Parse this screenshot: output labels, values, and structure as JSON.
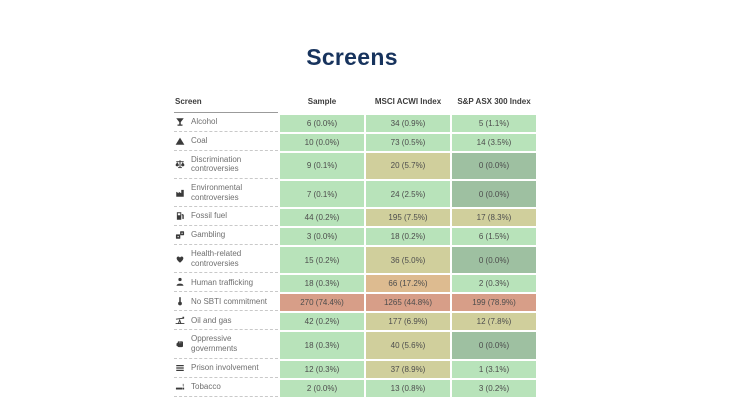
{
  "page": {
    "title_color": "#17335d",
    "background": "#ffffff"
  },
  "chart_data": {
    "type": "table",
    "title": "Screens",
    "columns": [
      "Screen",
      "Sample",
      "MSCI ACWI Index",
      "S&P ASX 300 Index"
    ],
    "palette": {
      "green": "#b8e3ba",
      "sage": "#9ec0a1",
      "tan": "#d0cf9c",
      "orange": "#ddbb90",
      "salmon": "#d79e88"
    },
    "rows": [
      {
        "label": "Alcohol",
        "icon": "cocktail-glass-icon",
        "cells": [
          {
            "value": "6 (0.0%)",
            "color": "green"
          },
          {
            "value": "34 (0.9%)",
            "color": "green"
          },
          {
            "value": "5 (1.1%)",
            "color": "green"
          }
        ]
      },
      {
        "label": "Coal",
        "icon": "mountain-icon",
        "cells": [
          {
            "value": "10 (0.0%)",
            "color": "green"
          },
          {
            "value": "73 (0.5%)",
            "color": "green"
          },
          {
            "value": "14 (3.5%)",
            "color": "green"
          }
        ]
      },
      {
        "label": "Discrimination controversies",
        "icon": "scales-icon",
        "cells": [
          {
            "value": "9 (0.1%)",
            "color": "green"
          },
          {
            "value": "20 (5.7%)",
            "color": "tan"
          },
          {
            "value": "0 (0.0%)",
            "color": "sage"
          }
        ]
      },
      {
        "label": "Environmental controversies",
        "icon": "factory-icon",
        "cells": [
          {
            "value": "7 (0.1%)",
            "color": "green"
          },
          {
            "value": "24 (2.5%)",
            "color": "green"
          },
          {
            "value": "0 (0.0%)",
            "color": "sage"
          }
        ]
      },
      {
        "label": "Fossil fuel",
        "icon": "gas-pump-icon",
        "cells": [
          {
            "value": "44 (0.2%)",
            "color": "green"
          },
          {
            "value": "195 (7.5%)",
            "color": "tan"
          },
          {
            "value": "17 (8.3%)",
            "color": "tan"
          }
        ]
      },
      {
        "label": "Gambling",
        "icon": "dice-icon",
        "cells": [
          {
            "value": "3 (0.0%)",
            "color": "green"
          },
          {
            "value": "18 (0.2%)",
            "color": "green"
          },
          {
            "value": "6 (1.5%)",
            "color": "green"
          }
        ]
      },
      {
        "label": "Health-related controversies",
        "icon": "heart-icon",
        "cells": [
          {
            "value": "15 (0.2%)",
            "color": "green"
          },
          {
            "value": "36 (5.0%)",
            "color": "tan"
          },
          {
            "value": "0 (0.0%)",
            "color": "sage"
          }
        ]
      },
      {
        "label": "Human trafficking",
        "icon": "person-icon",
        "cells": [
          {
            "value": "18 (0.3%)",
            "color": "green"
          },
          {
            "value": "66 (17.2%)",
            "color": "orange"
          },
          {
            "value": "2 (0.3%)",
            "color": "green"
          }
        ]
      },
      {
        "label": "No SBTI commitment",
        "icon": "thermometer-icon",
        "cells": [
          {
            "value": "270 (74.4%)",
            "color": "salmon"
          },
          {
            "value": "1265 (44.8%)",
            "color": "salmon"
          },
          {
            "value": "199 (78.9%)",
            "color": "salmon"
          }
        ]
      },
      {
        "label": "Oil and gas",
        "icon": "oil-pump-icon",
        "cells": [
          {
            "value": "42 (0.2%)",
            "color": "green"
          },
          {
            "value": "177 (6.9%)",
            "color": "tan"
          },
          {
            "value": "12 (7.8%)",
            "color": "tan"
          }
        ]
      },
      {
        "label": "Oppressive governments",
        "icon": "raised-fist-icon",
        "cells": [
          {
            "value": "18 (0.3%)",
            "color": "green"
          },
          {
            "value": "40 (5.6%)",
            "color": "tan"
          },
          {
            "value": "0 (0.0%)",
            "color": "sage"
          }
        ]
      },
      {
        "label": "Prison involvement",
        "icon": "prison-bars-icon",
        "cells": [
          {
            "value": "12 (0.3%)",
            "color": "green"
          },
          {
            "value": "37 (8.9%)",
            "color": "tan"
          },
          {
            "value": "1 (3.1%)",
            "color": "green"
          }
        ]
      },
      {
        "label": "Tobacco",
        "icon": "cigarette-icon",
        "cells": [
          {
            "value": "2 (0.0%)",
            "color": "green"
          },
          {
            "value": "13 (0.8%)",
            "color": "green"
          },
          {
            "value": "3 (0.2%)",
            "color": "green"
          }
        ]
      }
    ]
  }
}
